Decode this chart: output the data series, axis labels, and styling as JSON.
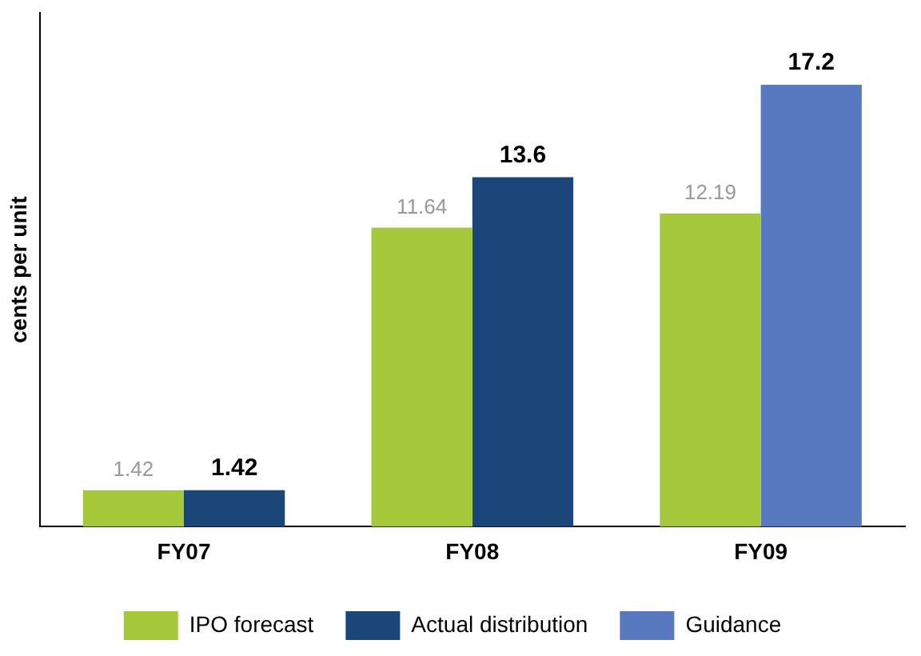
{
  "chart_data": {
    "type": "bar",
    "ylabel": "cents per unit",
    "categories": [
      "FY07",
      "FY08",
      "FY09"
    ],
    "series": [
      {
        "name": "IPO forecast",
        "color": "#a5c93b",
        "values": [
          1.42,
          11.64,
          12.19
        ]
      },
      {
        "name": "Actual distribution",
        "color": "#1a4679",
        "values": [
          1.42,
          13.6,
          null
        ]
      },
      {
        "name": "Guidance",
        "color": "#5878c0",
        "values": [
          null,
          null,
          17.2
        ]
      }
    ],
    "data_labels": true,
    "legend": "bottom",
    "grid": false,
    "tick_labels": "x"
  }
}
